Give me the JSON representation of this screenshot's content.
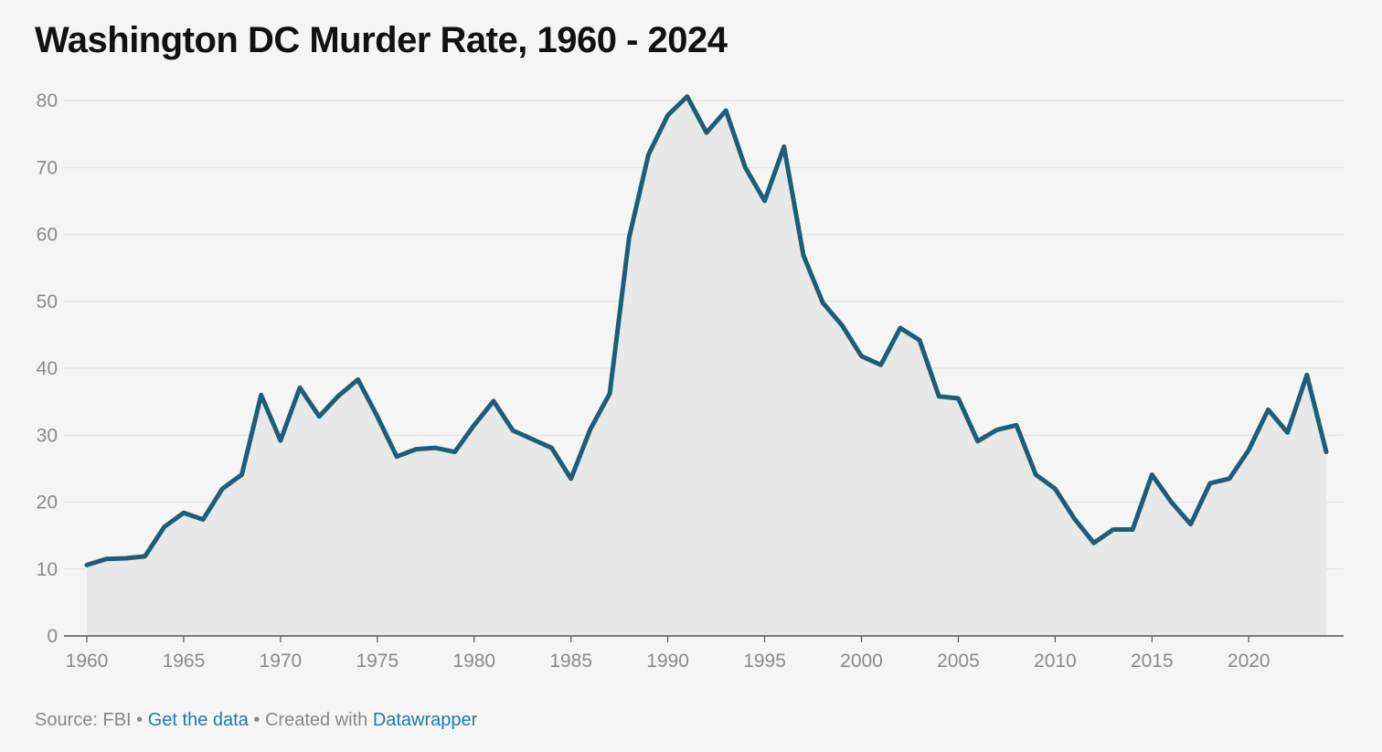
{
  "chart_data": {
    "type": "area",
    "title": "Washington DC Murder Rate, 1960 - 2024",
    "xlabel": "",
    "ylabel": "",
    "xlim": [
      1960,
      2024
    ],
    "ylim": [
      0,
      80
    ],
    "yticks": [
      0,
      10,
      20,
      30,
      40,
      50,
      60,
      70,
      80
    ],
    "xticks": [
      1960,
      1965,
      1970,
      1975,
      1980,
      1985,
      1990,
      1995,
      2000,
      2005,
      2010,
      2015,
      2020
    ],
    "grid": true,
    "legend": "none",
    "line_color": "#1e5d78",
    "fill_color": "#e8e8e8",
    "x": [
      1960,
      1961,
      1962,
      1963,
      1964,
      1965,
      1966,
      1967,
      1968,
      1969,
      1970,
      1971,
      1972,
      1973,
      1974,
      1975,
      1976,
      1977,
      1978,
      1979,
      1980,
      1981,
      1982,
      1983,
      1984,
      1985,
      1986,
      1987,
      1988,
      1989,
      1990,
      1991,
      1992,
      1993,
      1994,
      1995,
      1996,
      1997,
      1998,
      1999,
      2000,
      2001,
      2002,
      2003,
      2004,
      2005,
      2006,
      2007,
      2008,
      2009,
      2010,
      2011,
      2012,
      2013,
      2014,
      2015,
      2016,
      2017,
      2018,
      2019,
      2020,
      2021,
      2022,
      2023,
      2024
    ],
    "values": [
      10.6,
      11.5,
      11.6,
      11.9,
      16.3,
      18.4,
      17.4,
      22.0,
      24.1,
      36.0,
      29.2,
      37.1,
      32.8,
      35.9,
      38.3,
      32.8,
      26.8,
      27.9,
      28.1,
      27.5,
      31.5,
      35.1,
      30.7,
      29.4,
      28.1,
      23.5,
      30.9,
      36.2,
      59.5,
      71.9,
      77.8,
      80.6,
      75.2,
      78.5,
      70.0,
      65.0,
      73.1,
      56.9,
      49.8,
      46.4,
      41.8,
      40.5,
      46.0,
      44.2,
      35.8,
      35.5,
      29.1,
      30.8,
      31.5,
      24.1,
      22.0,
      17.5,
      13.9,
      15.9,
      15.9,
      24.1,
      20.0,
      16.7,
      22.8,
      23.5,
      27.8,
      33.8,
      30.4,
      39.0,
      27.5
    ]
  },
  "footer": {
    "source_text": "Source: FBI",
    "separator": "•",
    "data_link": "Get the data",
    "created_text": "Created with",
    "tool_link": "Datawrapper"
  }
}
